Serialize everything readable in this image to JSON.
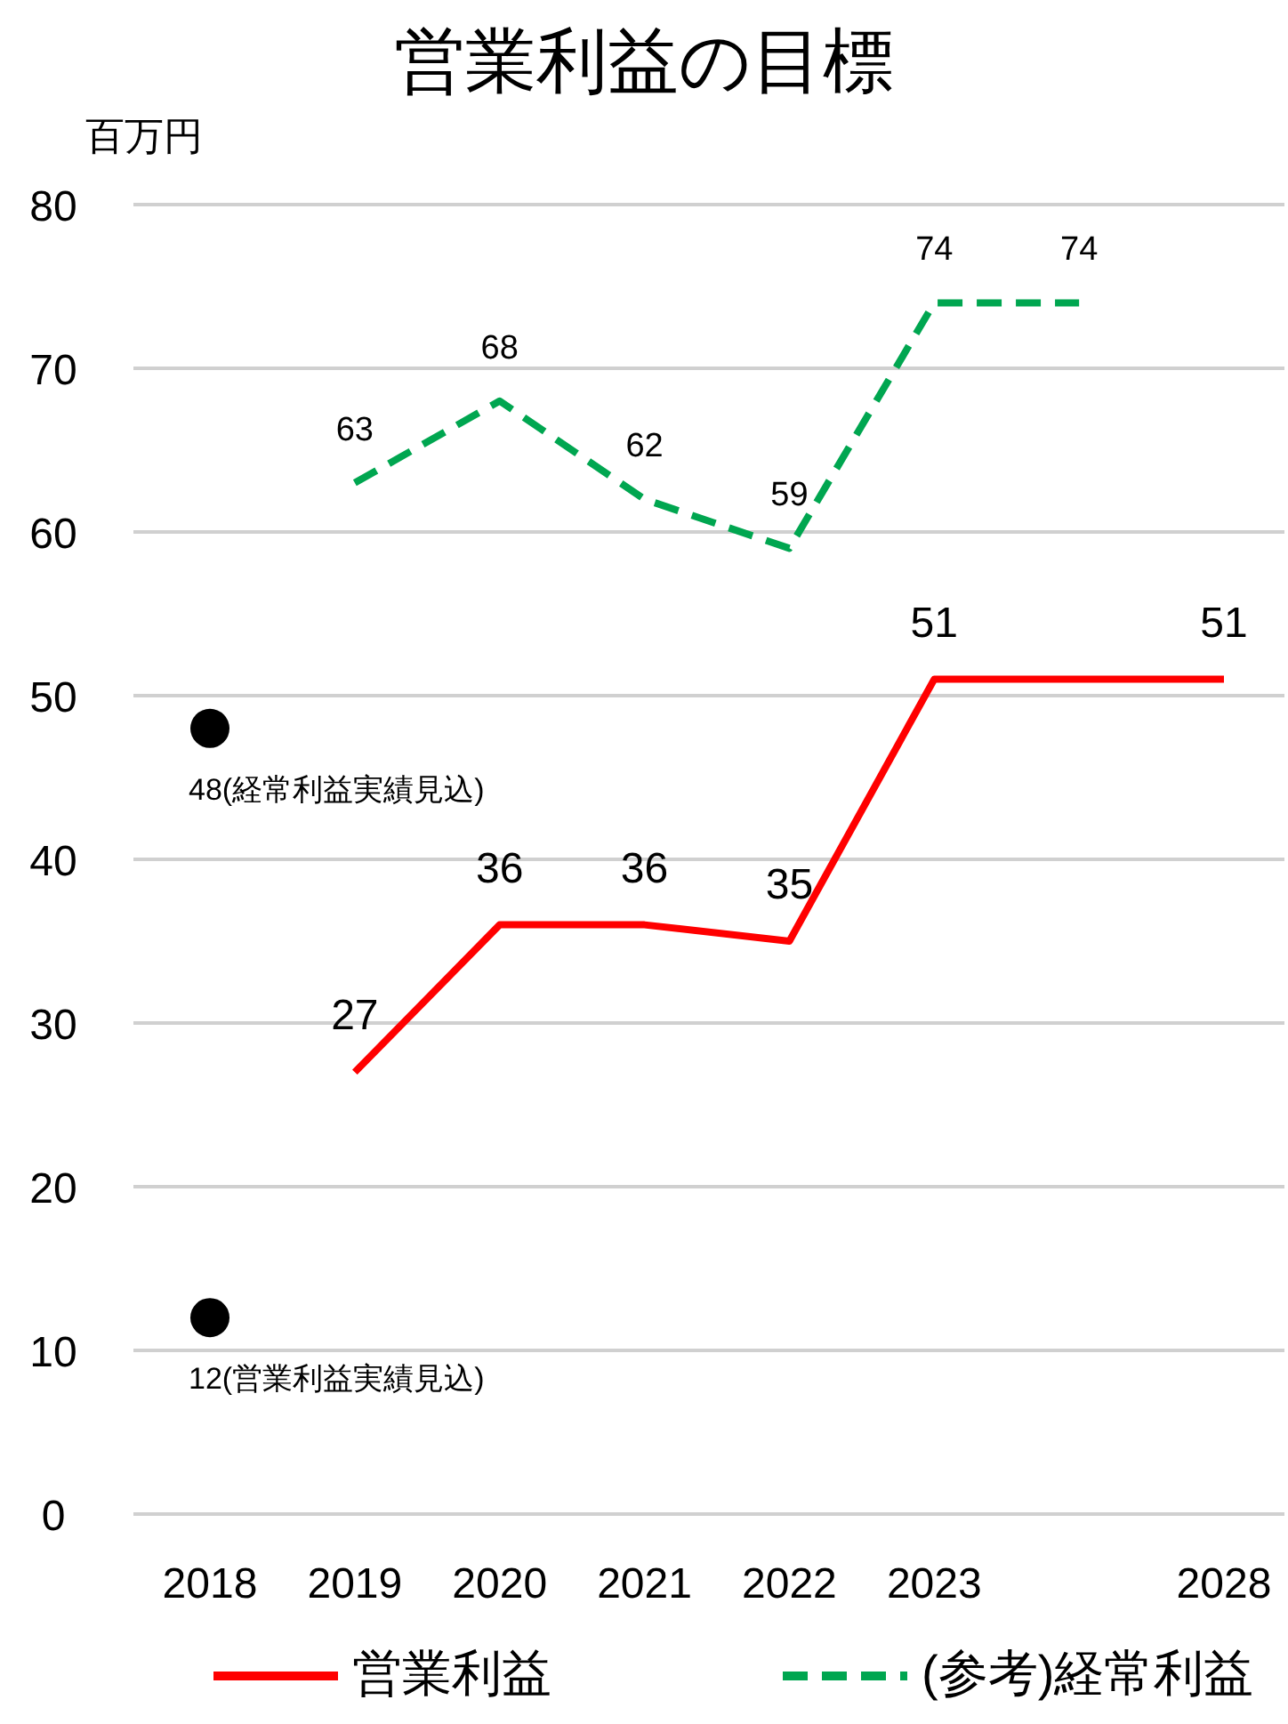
{
  "chart_data": {
    "type": "line",
    "title": "営業利益の目標",
    "ylabel": "百万円",
    "categories": [
      "2018",
      "2019",
      "2020",
      "2021",
      "2022",
      "2023",
      null,
      "2028"
    ],
    "ylim": [
      0,
      80
    ],
    "yticks": [
      0,
      10,
      20,
      30,
      40,
      50,
      60,
      70,
      80
    ],
    "grid": "y",
    "legend": "bottom",
    "marker": "none",
    "series": [
      {
        "name": "営業利益",
        "color": "#ff0000",
        "line_style": "solid",
        "values": [
          null,
          27,
          36,
          36,
          35,
          51,
          51,
          51
        ],
        "value_labels": [
          null,
          "27",
          "36",
          "36",
          "35",
          "51",
          null,
          "51"
        ]
      },
      {
        "name": "(参考)経常利益",
        "color": "#00a650",
        "line_style": "dashed",
        "values": [
          null,
          63,
          68,
          62,
          59,
          74,
          74,
          null
        ],
        "value_labels": [
          null,
          "63",
          "68",
          "62",
          "59",
          "74",
          "74",
          null
        ]
      },
      {
        "type": "scatter",
        "color": "#000000",
        "marker": "circle",
        "values": [
          48,
          null,
          null,
          null,
          null,
          null,
          null,
          null
        ],
        "value_labels": [
          "48(経常利益実績見込)",
          null,
          null,
          null,
          null,
          null,
          null,
          null
        ]
      },
      {
        "type": "scatter",
        "color": "#000000",
        "marker": "circle",
        "values": [
          12,
          null,
          null,
          null,
          null,
          null,
          null,
          null
        ],
        "value_labels": [
          "12(営業利益実績見込)",
          null,
          null,
          null,
          null,
          null,
          null,
          null
        ]
      }
    ]
  }
}
